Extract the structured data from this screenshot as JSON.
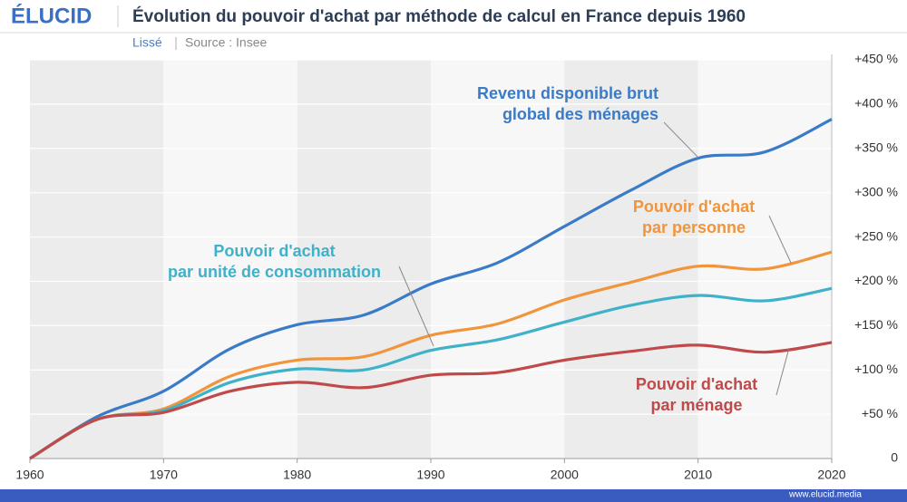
{
  "brand": "ÉLUCID",
  "footer": "www.elucid.media",
  "chart_data": {
    "type": "line",
    "title": "Évolution du pouvoir d'achat par méthode de calcul en France depuis 1960",
    "subtitle": "Lissé",
    "source": "Source : Insee",
    "x": [
      1960,
      1965,
      1970,
      1975,
      1980,
      1985,
      1990,
      1995,
      2000,
      2005,
      2010,
      2015,
      2020
    ],
    "series": [
      {
        "name": "Revenu disponible brut\nglobal des ménages",
        "color": "#3a7bc8",
        "values": [
          0,
          47,
          76,
          124,
          151,
          162,
          197,
          221,
          262,
          303,
          339,
          346,
          383
        ]
      },
      {
        "name": "Pouvoir d'achat\npar personne",
        "color": "#f0953c",
        "values": [
          0,
          44,
          56,
          93,
          111,
          115,
          139,
          152,
          179,
          199,
          217,
          214,
          233
        ]
      },
      {
        "name": "Pouvoir d'achat\npar unité de consommation",
        "color": "#3fb1c9",
        "values": [
          0,
          44,
          54,
          86,
          101,
          100,
          122,
          134,
          154,
          173,
          184,
          178,
          192
        ]
      },
      {
        "name": "Pouvoir d'achat\npar ménage",
        "color": "#c0494a",
        "values": [
          0,
          44,
          52,
          76,
          86,
          80,
          94,
          97,
          111,
          121,
          128,
          120,
          131
        ]
      }
    ],
    "xlim": [
      1960,
      2020
    ],
    "xticks": [
      1960,
      1970,
      1980,
      1990,
      2000,
      2010,
      2020
    ],
    "ylim": [
      0,
      450
    ],
    "yticks": [
      0,
      {
        "value": 50,
        "label": "+50 %"
      },
      {
        "value": 100,
        "label": "+100 %"
      },
      {
        "value": 150,
        "label": "+150 %"
      },
      {
        "value": 200,
        "label": "+200 %"
      },
      {
        "value": 250,
        "label": "+250 %"
      },
      {
        "value": 300,
        "label": "+300 %"
      },
      {
        "value": 350,
        "label": "+350 %"
      },
      {
        "value": 400,
        "label": "+400 %"
      },
      {
        "value": 450,
        "label": "+450 %"
      }
    ],
    "grid": true
  }
}
